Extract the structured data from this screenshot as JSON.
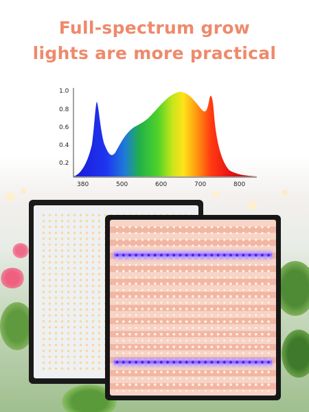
{
  "headline": {
    "line1": "Full-spectrum grow",
    "line2": "lights are more practical"
  },
  "spectrum_chart": {
    "y_ticks": [
      "1.0",
      "0.8",
      "0.6",
      "0.4",
      "0.2"
    ],
    "x_ticks": [
      "380",
      "500",
      "600",
      "700",
      "800"
    ]
  },
  "colors": {
    "headline": "#ee8a6c",
    "panel_frame": "#1a1a1a",
    "uv_strip": "#8a5cff"
  },
  "product": {
    "panels": [
      "white-led-panel",
      "full-spectrum-led-panel"
    ]
  }
}
